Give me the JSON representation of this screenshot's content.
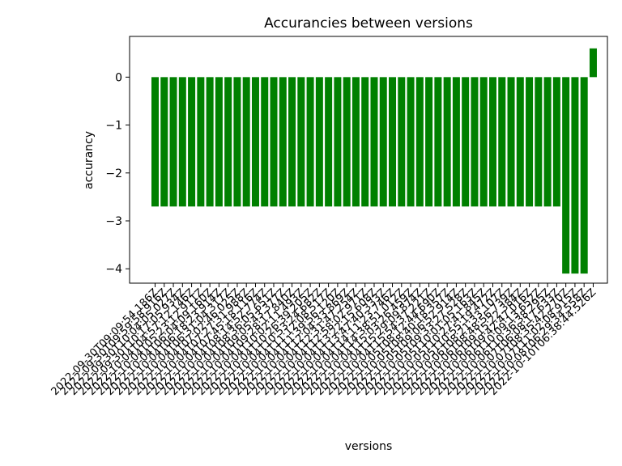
{
  "chart_data": {
    "type": "bar",
    "title": "Accurancies between versions",
    "xlabel": "versions",
    "ylabel": "accurancy",
    "ylim": [
      -4.3,
      0.85
    ],
    "yticks": [
      0,
      -1,
      -2,
      -3,
      -4
    ],
    "grid": false,
    "bar_color": "#008000",
    "categories": [
      "2022-09-30T09:09:54.186Z",
      "2022-09-30T09:59:58.916Z",
      "2022-09-30T10:04:05.027Z",
      "2022-09-30T10:17:05.934Z",
      "2022-10-04T04:57:12.146Z",
      "2022-10-04T05:23:12.911Z",
      "2022-10-04T06:04:09.160Z",
      "2022-10-04T06:18:23.914Z",
      "2022-10-04T06:31:04.317Z",
      "2022-10-04T07:02:46.025Z",
      "2022-10-04T07:27:31.988Z",
      "2022-10-04T07:45:18.116Z",
      "2022-10-04T08:14:52.774Z",
      "2022-10-04T08:36:05.651Z",
      "2022-10-04T09:05:43.377Z",
      "2022-10-04T09:28:17.840Z",
      "2022-10-04T10:02:11.493Z",
      "2022-10-04T10:26:39.205Z",
      "2022-10-04T10:53:24.682Z",
      "2022-10-04T11:12:08.517Z",
      "2022-10-04T11:39:56.120Z",
      "2022-10-04T12:04:33.869Z",
      "2022-10-04T12:31:47.254Z",
      "2022-10-04T12:58:02.971Z",
      "2022-10-04T13:22:15.608Z",
      "2022-10-04T13:47:40.333Z",
      "2022-10-04T14:11:23.746Z",
      "2022-10-04T14:38:51.012Z",
      "2022-10-04T15:03:26.459Z",
      "2022-10-04T15:29:09.874Z",
      "2022-10-04T15:54:37.221Z",
      "2022-10-05T08:12:44.690Z",
      "2022-10-05T08:40:18.357Z",
      "2022-10-05T09:06:52.914Z",
      "2022-10-05T09:33:27.528Z",
      "2022-10-05T10:01:05.163Z",
      "2022-10-05T10:27:41.845Z",
      "2022-10-05T10:55:19.472Z",
      "2022-10-06T08:21:33.107Z",
      "2022-10-06T08:48:56.739Z",
      "2022-10-06T09:15:22.384Z",
      "2022-10-06T09:42:47.016Z",
      "2022-10-06T10:09:13.652Z",
      "2022-10-06T10:36:38.295Z",
      "2022-10-07T06:08:17.633Z",
      "2022-10-07T08:35:42.270Z",
      "2022-10-07T11:02:08.915Z",
      "2022-10-08T06:29:34.558Z",
      "2022-10-10T06:38:44.526Z"
    ],
    "values": [
      -2.7,
      -2.7,
      -2.7,
      -2.7,
      -2.7,
      -2.7,
      -2.7,
      -2.7,
      -2.7,
      -2.7,
      -2.7,
      -2.7,
      -2.7,
      -2.7,
      -2.7,
      -2.7,
      -2.7,
      -2.7,
      -2.7,
      -2.7,
      -2.7,
      -2.7,
      -2.7,
      -2.7,
      -2.7,
      -2.7,
      -2.7,
      -2.7,
      -2.7,
      -2.7,
      -2.7,
      -2.7,
      -2.7,
      -2.7,
      -2.7,
      -2.7,
      -2.7,
      -2.7,
      -2.7,
      -2.7,
      -2.7,
      -2.7,
      -2.7,
      -2.7,
      -2.7,
      -4.1,
      -4.1,
      -4.1,
      0.6
    ]
  }
}
